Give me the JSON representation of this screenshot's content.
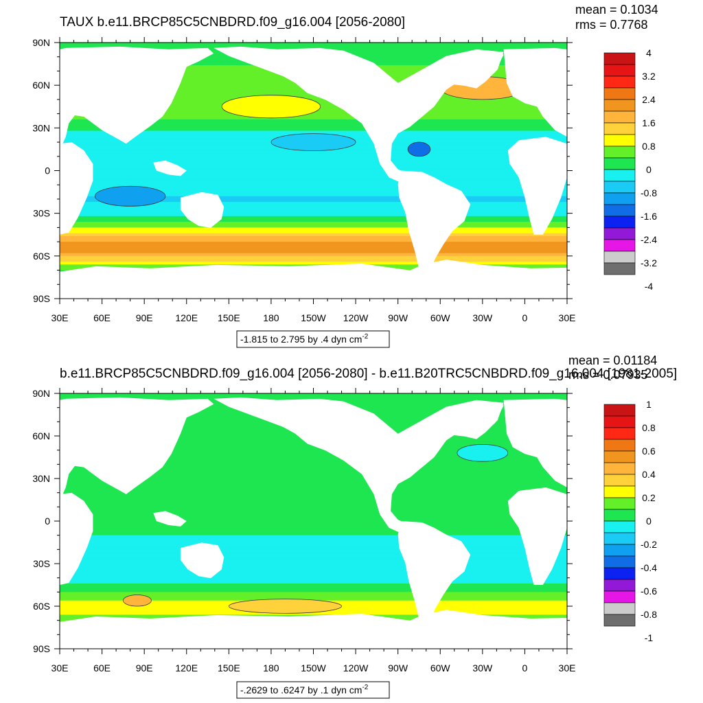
{
  "palette": [
    "#6e6e6e",
    "#cccccc",
    "#e617e6",
    "#9119d7",
    "#0c22f0",
    "#0f6ee6",
    "#0fa0f0",
    "#1acbf5",
    "#19f0f0",
    "#1ee650",
    "#64f028",
    "#ffff00",
    "#ffd23c",
    "#ffb43c",
    "#f0961e",
    "#f07814",
    "#ff2814",
    "#e61414",
    "#c81414"
  ],
  "land_color": "#ffffff",
  "axes": {
    "lat_ticks": [
      "90N",
      "60N",
      "30N",
      "0",
      "30S",
      "60S",
      "90S"
    ],
    "lon_ticks": [
      "30E",
      "60E",
      "90E",
      "120E",
      "150E",
      "180",
      "150W",
      "120W",
      "90W",
      "60W",
      "30W",
      "0",
      "30E"
    ]
  },
  "chart_data": [
    {
      "type": "heatmap",
      "title": "TAUX b.e11.BRCP85C5CNBDRD.f09_g16.004 [2056-2080]",
      "stats": {
        "mean": "mean = 0.1034",
        "rms": "rms = 0.7768"
      },
      "contour_info": "-1.815 to 2.795 by .4 dyn cm",
      "contour_sup": "-2",
      "xlim": [
        30,
        390
      ],
      "ylim": [
        -90,
        90
      ],
      "colorbar_labels": [
        "4",
        "3.2",
        "2.4",
        "1.6",
        "0.8",
        "0",
        "-0.8",
        "-1.6",
        "-2.4",
        "-3.2",
        "-4"
      ],
      "colorbar_range": [
        -4,
        4
      ],
      "zonal_bands": [
        {
          "lat": 90,
          "value": 0.2
        },
        {
          "lat": 75,
          "value": 0.2
        },
        {
          "lat": 60,
          "value": 0.3
        },
        {
          "lat": 48,
          "value": 0.6
        },
        {
          "lat": 38,
          "value": 0.3
        },
        {
          "lat": 25,
          "value": -0.4
        },
        {
          "lat": 12,
          "value": -0.6
        },
        {
          "lat": 0,
          "value": -0.4
        },
        {
          "lat": -12,
          "value": -0.5
        },
        {
          "lat": -20,
          "value": -0.7
        },
        {
          "lat": -30,
          "value": -0.4
        },
        {
          "lat": -38,
          "value": 0.3
        },
        {
          "lat": -42,
          "value": 0.9
        },
        {
          "lat": -47,
          "value": 1.5
        },
        {
          "lat": -52,
          "value": 2.0
        },
        {
          "lat": -56,
          "value": 2.1
        },
        {
          "lat": -60,
          "value": 1.6
        },
        {
          "lat": -64,
          "value": 1.0
        },
        {
          "lat": -68,
          "value": 0.3
        },
        {
          "lat": -75,
          "value": 0.0
        },
        {
          "lat": -90,
          "value": 0.0
        }
      ],
      "hotspots": [
        {
          "lon": 180,
          "lat": 45,
          "rx": 35,
          "ry": 8,
          "value": 1.0
        },
        {
          "lon": 210,
          "lat": 20,
          "rx": 30,
          "ry": 6,
          "value": -1.0
        },
        {
          "lon": 80,
          "lat": -18,
          "rx": 25,
          "ry": 7,
          "value": -1.1
        },
        {
          "lon": 330,
          "lat": 58,
          "rx": 30,
          "ry": 8,
          "value": 1.7
        },
        {
          "lon": 285,
          "lat": 15,
          "rx": 8,
          "ry": 5,
          "value": -1.5
        }
      ]
    },
    {
      "type": "heatmap",
      "title": "b.e11.BRCP85C5CNBDRD.f09_g16.004 [2056-2080] - b.e11.B20TRC5CNBDRD.f09_g16.004 [1981-2005]",
      "stats": {
        "mean": "mean = 0.01184",
        "rms": "rms = 0.07935"
      },
      "contour_info": "-.2629 to .6247 by .1 dyn cm",
      "contour_sup": "-2",
      "xlim": [
        30,
        390
      ],
      "ylim": [
        -90,
        90
      ],
      "colorbar_labels": [
        "1",
        "0.8",
        "0.6",
        "0.4",
        "0.2",
        "0",
        "-0.2",
        "-0.4",
        "-0.6",
        "-0.8",
        "-1"
      ],
      "colorbar_range": [
        -1,
        1
      ],
      "zonal_bands": [
        {
          "lat": 90,
          "value": 0.05
        },
        {
          "lat": 60,
          "value": 0.03
        },
        {
          "lat": 45,
          "value": 0.02
        },
        {
          "lat": 30,
          "value": -0.05
        },
        {
          "lat": 15,
          "value": 0.02
        },
        {
          "lat": 0,
          "value": 0.02
        },
        {
          "lat": -15,
          "value": -0.08
        },
        {
          "lat": -30,
          "value": -0.08
        },
        {
          "lat": -42,
          "value": -0.1
        },
        {
          "lat": -48,
          "value": 0.03
        },
        {
          "lat": -55,
          "value": 0.15
        },
        {
          "lat": -62,
          "value": 0.22
        },
        {
          "lat": -68,
          "value": 0.12
        },
        {
          "lat": -75,
          "value": 0.03
        },
        {
          "lat": -90,
          "value": 0.02
        }
      ],
      "hotspots": [
        {
          "lon": 85,
          "lat": -56,
          "rx": 10,
          "ry": 4,
          "value": 0.45
        },
        {
          "lon": 330,
          "lat": 48,
          "rx": 18,
          "ry": 6,
          "value": -0.15
        },
        {
          "lon": 190,
          "lat": -60,
          "rx": 40,
          "ry": 5,
          "value": 0.3
        }
      ]
    }
  ]
}
